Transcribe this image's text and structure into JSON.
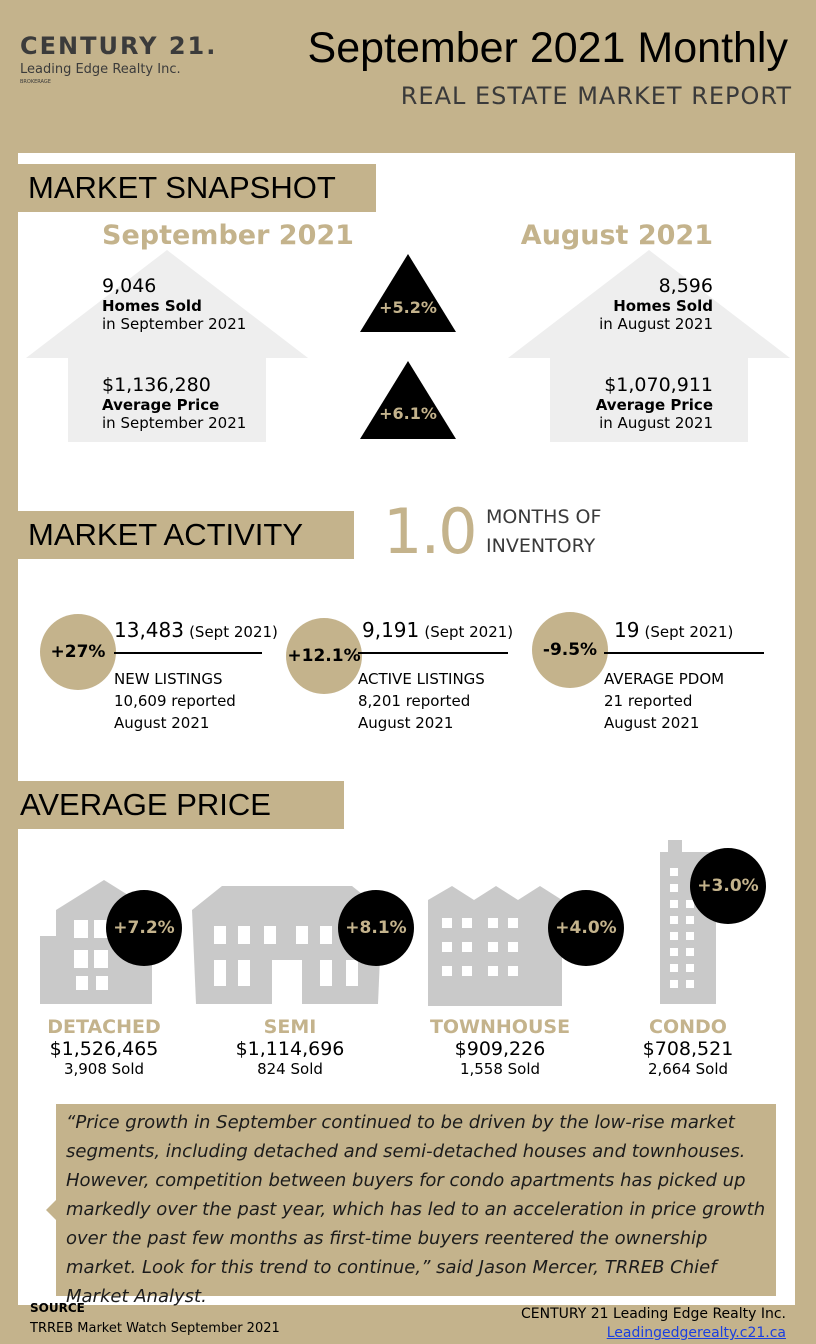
{
  "header": {
    "logo_main": "CENTURY 21.",
    "logo_sub": "Leading Edge Realty Inc.",
    "logo_tiny": "BROKERAGE",
    "title": "September 2021 Monthly",
    "subtitle": "REAL ESTATE MARKET REPORT"
  },
  "snapshot": {
    "heading": "MARKET SNAPSHOT",
    "current_period": "September 2021",
    "previous_period": "August 2021",
    "homes_sold": {
      "current_value": "9,046",
      "label": "Homes Sold",
      "current_sub": "in September 2021",
      "previous_value": "8,596",
      "previous_sub": "in August 2021",
      "change": "+5.2%"
    },
    "avg_price": {
      "current_value": "$1,136,280",
      "label": "Average Price",
      "current_sub": "in September 2021",
      "previous_value": "$1,070,911",
      "previous_sub": "in August 2021",
      "change": "+6.1%"
    }
  },
  "activity": {
    "heading": "MARKET ACTIVITY",
    "months_value": "1.0",
    "months_line1": "MONTHS OF",
    "months_line2": "INVENTORY",
    "items": [
      {
        "change": "+27%",
        "value": "13,483",
        "period": "(Sept 2021)",
        "label": "NEW LISTINGS",
        "prev_value": "10,609  reported",
        "prev_period": "August 2021"
      },
      {
        "change": "+12.1%",
        "value": "9,191",
        "period": "(Sept 2021)",
        "label": "ACTIVE LISTINGS",
        "prev_value": "8,201  reported",
        "prev_period": "August 2021"
      },
      {
        "change": "-9.5%",
        "value": "19",
        "period": "(Sept 2021)",
        "label": "AVERAGE PDOM",
        "prev_value": "21 reported",
        "prev_period": "August 2021"
      }
    ]
  },
  "avg_price": {
    "heading": "AVERAGE PRICE",
    "types": [
      {
        "name": "DETACHED",
        "price": "$1,526,465",
        "sold": "3,908 Sold",
        "change": "+7.2%"
      },
      {
        "name": "SEMI",
        "price": "$1,114,696",
        "sold": "824 Sold",
        "change": "+8.1%"
      },
      {
        "name": "TOWNHOUSE",
        "price": "$909,226",
        "sold": "1,558 Sold",
        "change": "+4.0%"
      },
      {
        "name": "CONDO",
        "price": "$708,521",
        "sold": "2,664 Sold",
        "change": "+3.0%"
      }
    ]
  },
  "quote": "“Price growth in September continued to be driven by the low-rise market segments, including detached and semi-detached houses and townhouses. However, competition between buyers for condo apartments has picked up markedly over the past year, which has led to an acceleration in price growth over the past few months as first-time buyers reentered the ownership market. Look for this trend to continue,” said Jason Mercer, TRREB Chief Market Analyst.",
  "footer": {
    "source_label": "SOURCE",
    "source_text": "TRREB Market Watch September 2021",
    "company": "CENTURY 21 Leading Edge Realty Inc.",
    "website": "Leadingedgerealty.c21.ca"
  },
  "colors": {
    "accent": "#c4b38c",
    "dark": "#000000"
  }
}
